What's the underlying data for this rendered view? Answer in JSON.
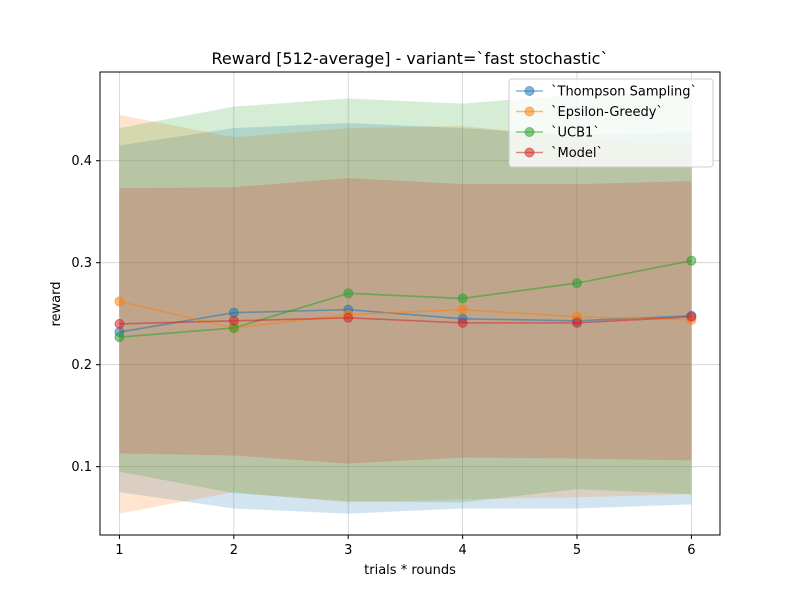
{
  "chart_data": {
    "type": "line",
    "title": "Reward [512-average] - variant=`fast stochastic`",
    "xlabel": "trials * rounds",
    "ylabel": "reward",
    "x": [
      1,
      2,
      3,
      4,
      5,
      6
    ],
    "xlim": [
      0.83,
      6.25
    ],
    "ylim": [
      0.033,
      0.487
    ],
    "xticks": [
      1,
      2,
      3,
      4,
      5,
      6
    ],
    "yticks": [
      0.1,
      0.2,
      0.3,
      0.4
    ],
    "ytick_labels": [
      "0.1",
      "0.2",
      "0.3",
      "0.4"
    ],
    "grid": true,
    "legend_position": "top-right",
    "series": [
      {
        "name": "`Thompson Sampling`",
        "color": "#1f77b4",
        "values": [
          0.232,
          0.251,
          0.254,
          0.245,
          0.243,
          0.248
        ],
        "upper": [
          0.415,
          0.432,
          0.437,
          0.432,
          0.425,
          0.428
        ],
        "lower": [
          0.075,
          0.059,
          0.054,
          0.059,
          0.059,
          0.063
        ]
      },
      {
        "name": "`Epsilon-Greedy`",
        "color": "#ff7f0e",
        "values": [
          0.262,
          0.236,
          0.249,
          0.254,
          0.247,
          0.244
        ],
        "upper": [
          0.445,
          0.423,
          0.432,
          0.434,
          0.422,
          0.415
        ],
        "lower": [
          0.054,
          0.075,
          0.065,
          0.068,
          0.07,
          0.073
        ]
      },
      {
        "name": "`UCB1`",
        "color": "#2ca02c",
        "values": [
          0.227,
          0.236,
          0.27,
          0.265,
          0.28,
          0.302
        ],
        "upper": [
          0.432,
          0.453,
          0.461,
          0.456,
          0.465,
          0.466
        ],
        "lower": [
          0.095,
          0.074,
          0.066,
          0.065,
          0.078,
          0.073
        ]
      },
      {
        "name": "`Model`",
        "color": "#d62728",
        "values": [
          0.24,
          0.243,
          0.246,
          0.241,
          0.241,
          0.247
        ],
        "upper": [
          0.373,
          0.374,
          0.383,
          0.377,
          0.377,
          0.38
        ],
        "lower": [
          0.113,
          0.111,
          0.103,
          0.109,
          0.108,
          0.106
        ]
      }
    ]
  }
}
